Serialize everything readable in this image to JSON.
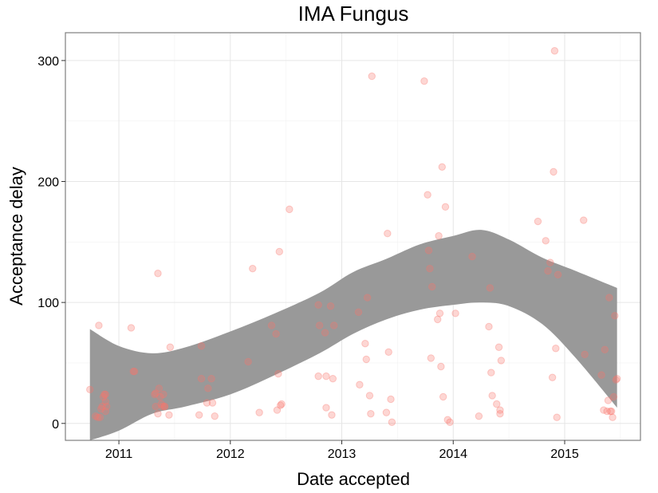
{
  "chart_data": {
    "type": "scatter",
    "title": "IMA Fungus",
    "xlabel": "Date accepted",
    "ylabel": "Acceptance delay",
    "x_ticks": [
      "2011",
      "2012",
      "2013",
      "2014",
      "2015"
    ],
    "y_ticks": [
      "0",
      "100",
      "200",
      "300"
    ],
    "xlim": [
      2010.52,
      2015.68
    ],
    "ylim": [
      -14,
      323
    ],
    "grid": true,
    "point_color": "#f8766d",
    "point_alpha": 0.3,
    "band_color": "#999999",
    "points": [
      [
        2010.74,
        28
      ],
      [
        2010.79,
        6
      ],
      [
        2010.81,
        5
      ],
      [
        2010.82,
        81
      ],
      [
        2010.83,
        5
      ],
      [
        2010.84,
        12
      ],
      [
        2010.85,
        14
      ],
      [
        2010.86,
        22
      ],
      [
        2010.87,
        24
      ],
      [
        2010.88,
        24
      ],
      [
        2010.88,
        18
      ],
      [
        2010.88,
        10
      ],
      [
        2010.89,
        14
      ],
      [
        2011.11,
        79
      ],
      [
        2011.13,
        43
      ],
      [
        2011.14,
        43
      ],
      [
        2011.32,
        24
      ],
      [
        2011.33,
        25
      ],
      [
        2011.33,
        14
      ],
      [
        2011.35,
        124
      ],
      [
        2011.35,
        8
      ],
      [
        2011.36,
        29
      ],
      [
        2011.37,
        22
      ],
      [
        2011.38,
        16
      ],
      [
        2011.39,
        14
      ],
      [
        2011.4,
        24
      ],
      [
        2011.41,
        14
      ],
      [
        2011.41,
        14
      ],
      [
        2011.45,
        7
      ],
      [
        2011.46,
        63
      ],
      [
        2011.72,
        7
      ],
      [
        2011.74,
        64
      ],
      [
        2011.74,
        37
      ],
      [
        2011.79,
        17
      ],
      [
        2011.8,
        29
      ],
      [
        2011.83,
        37
      ],
      [
        2011.84,
        17
      ],
      [
        2011.86,
        6
      ],
      [
        2012.16,
        51
      ],
      [
        2012.2,
        128
      ],
      [
        2012.26,
        9
      ],
      [
        2012.37,
        81
      ],
      [
        2012.41,
        74
      ],
      [
        2012.42,
        11
      ],
      [
        2012.43,
        41
      ],
      [
        2012.44,
        142
      ],
      [
        2012.45,
        15
      ],
      [
        2012.46,
        16
      ],
      [
        2012.53,
        177
      ],
      [
        2012.79,
        98
      ],
      [
        2012.79,
        39
      ],
      [
        2012.8,
        81
      ],
      [
        2012.85,
        75
      ],
      [
        2012.86,
        13
      ],
      [
        2012.86,
        39
      ],
      [
        2012.9,
        97
      ],
      [
        2012.91,
        7
      ],
      [
        2012.92,
        37
      ],
      [
        2012.93,
        81
      ],
      [
        2013.15,
        92
      ],
      [
        2013.16,
        32
      ],
      [
        2013.21,
        66
      ],
      [
        2013.22,
        53
      ],
      [
        2013.23,
        104
      ],
      [
        2013.25,
        23
      ],
      [
        2013.26,
        8
      ],
      [
        2013.27,
        287
      ],
      [
        2013.4,
        9
      ],
      [
        2013.41,
        157
      ],
      [
        2013.42,
        59
      ],
      [
        2013.44,
        20
      ],
      [
        2013.45,
        1
      ],
      [
        2013.74,
        283
      ],
      [
        2013.77,
        189
      ],
      [
        2013.78,
        143
      ],
      [
        2013.79,
        128
      ],
      [
        2013.8,
        54
      ],
      [
        2013.81,
        113
      ],
      [
        2013.86,
        86
      ],
      [
        2013.87,
        155
      ],
      [
        2013.88,
        91
      ],
      [
        2013.89,
        47
      ],
      [
        2013.9,
        212
      ],
      [
        2013.91,
        22
      ],
      [
        2013.93,
        179
      ],
      [
        2013.95,
        3
      ],
      [
        2013.97,
        1
      ],
      [
        2014.02,
        91
      ],
      [
        2014.17,
        138
      ],
      [
        2014.23,
        6
      ],
      [
        2014.32,
        80
      ],
      [
        2014.33,
        112
      ],
      [
        2014.34,
        42
      ],
      [
        2014.35,
        23
      ],
      [
        2014.39,
        16
      ],
      [
        2014.41,
        63
      ],
      [
        2014.42,
        8
      ],
      [
        2014.42,
        11
      ],
      [
        2014.43,
        52
      ],
      [
        2014.76,
        167
      ],
      [
        2014.83,
        151
      ],
      [
        2014.85,
        126
      ],
      [
        2014.87,
        133
      ],
      [
        2014.89,
        38
      ],
      [
        2014.9,
        208
      ],
      [
        2014.91,
        308
      ],
      [
        2014.92,
        62
      ],
      [
        2014.93,
        5
      ],
      [
        2014.94,
        123
      ],
      [
        2015.17,
        168
      ],
      [
        2015.18,
        57
      ],
      [
        2015.33,
        40
      ],
      [
        2015.35,
        11
      ],
      [
        2015.36,
        61
      ],
      [
        2015.38,
        10
      ],
      [
        2015.39,
        19
      ],
      [
        2015.4,
        104
      ],
      [
        2015.41,
        10
      ],
      [
        2015.42,
        10
      ],
      [
        2015.43,
        5
      ],
      [
        2015.44,
        22
      ],
      [
        2015.45,
        89
      ],
      [
        2015.46,
        36
      ],
      [
        2015.47,
        37
      ]
    ],
    "band": {
      "x": [
        2010.74,
        2011.0,
        2011.3,
        2011.6,
        2012.0,
        2012.4,
        2012.8,
        2013.1,
        2013.4,
        2013.7,
        2014.0,
        2014.25,
        2014.5,
        2014.8,
        2015.1,
        2015.47
      ],
      "upper": [
        78,
        64,
        58,
        63,
        76,
        91,
        108,
        125,
        136,
        148,
        155,
        160,
        152,
        137,
        126,
        112
      ],
      "lower": [
        -14,
        -6,
        8,
        14,
        24,
        40,
        58,
        74,
        86,
        94,
        98,
        100,
        97,
        82,
        54,
        13
      ]
    }
  }
}
